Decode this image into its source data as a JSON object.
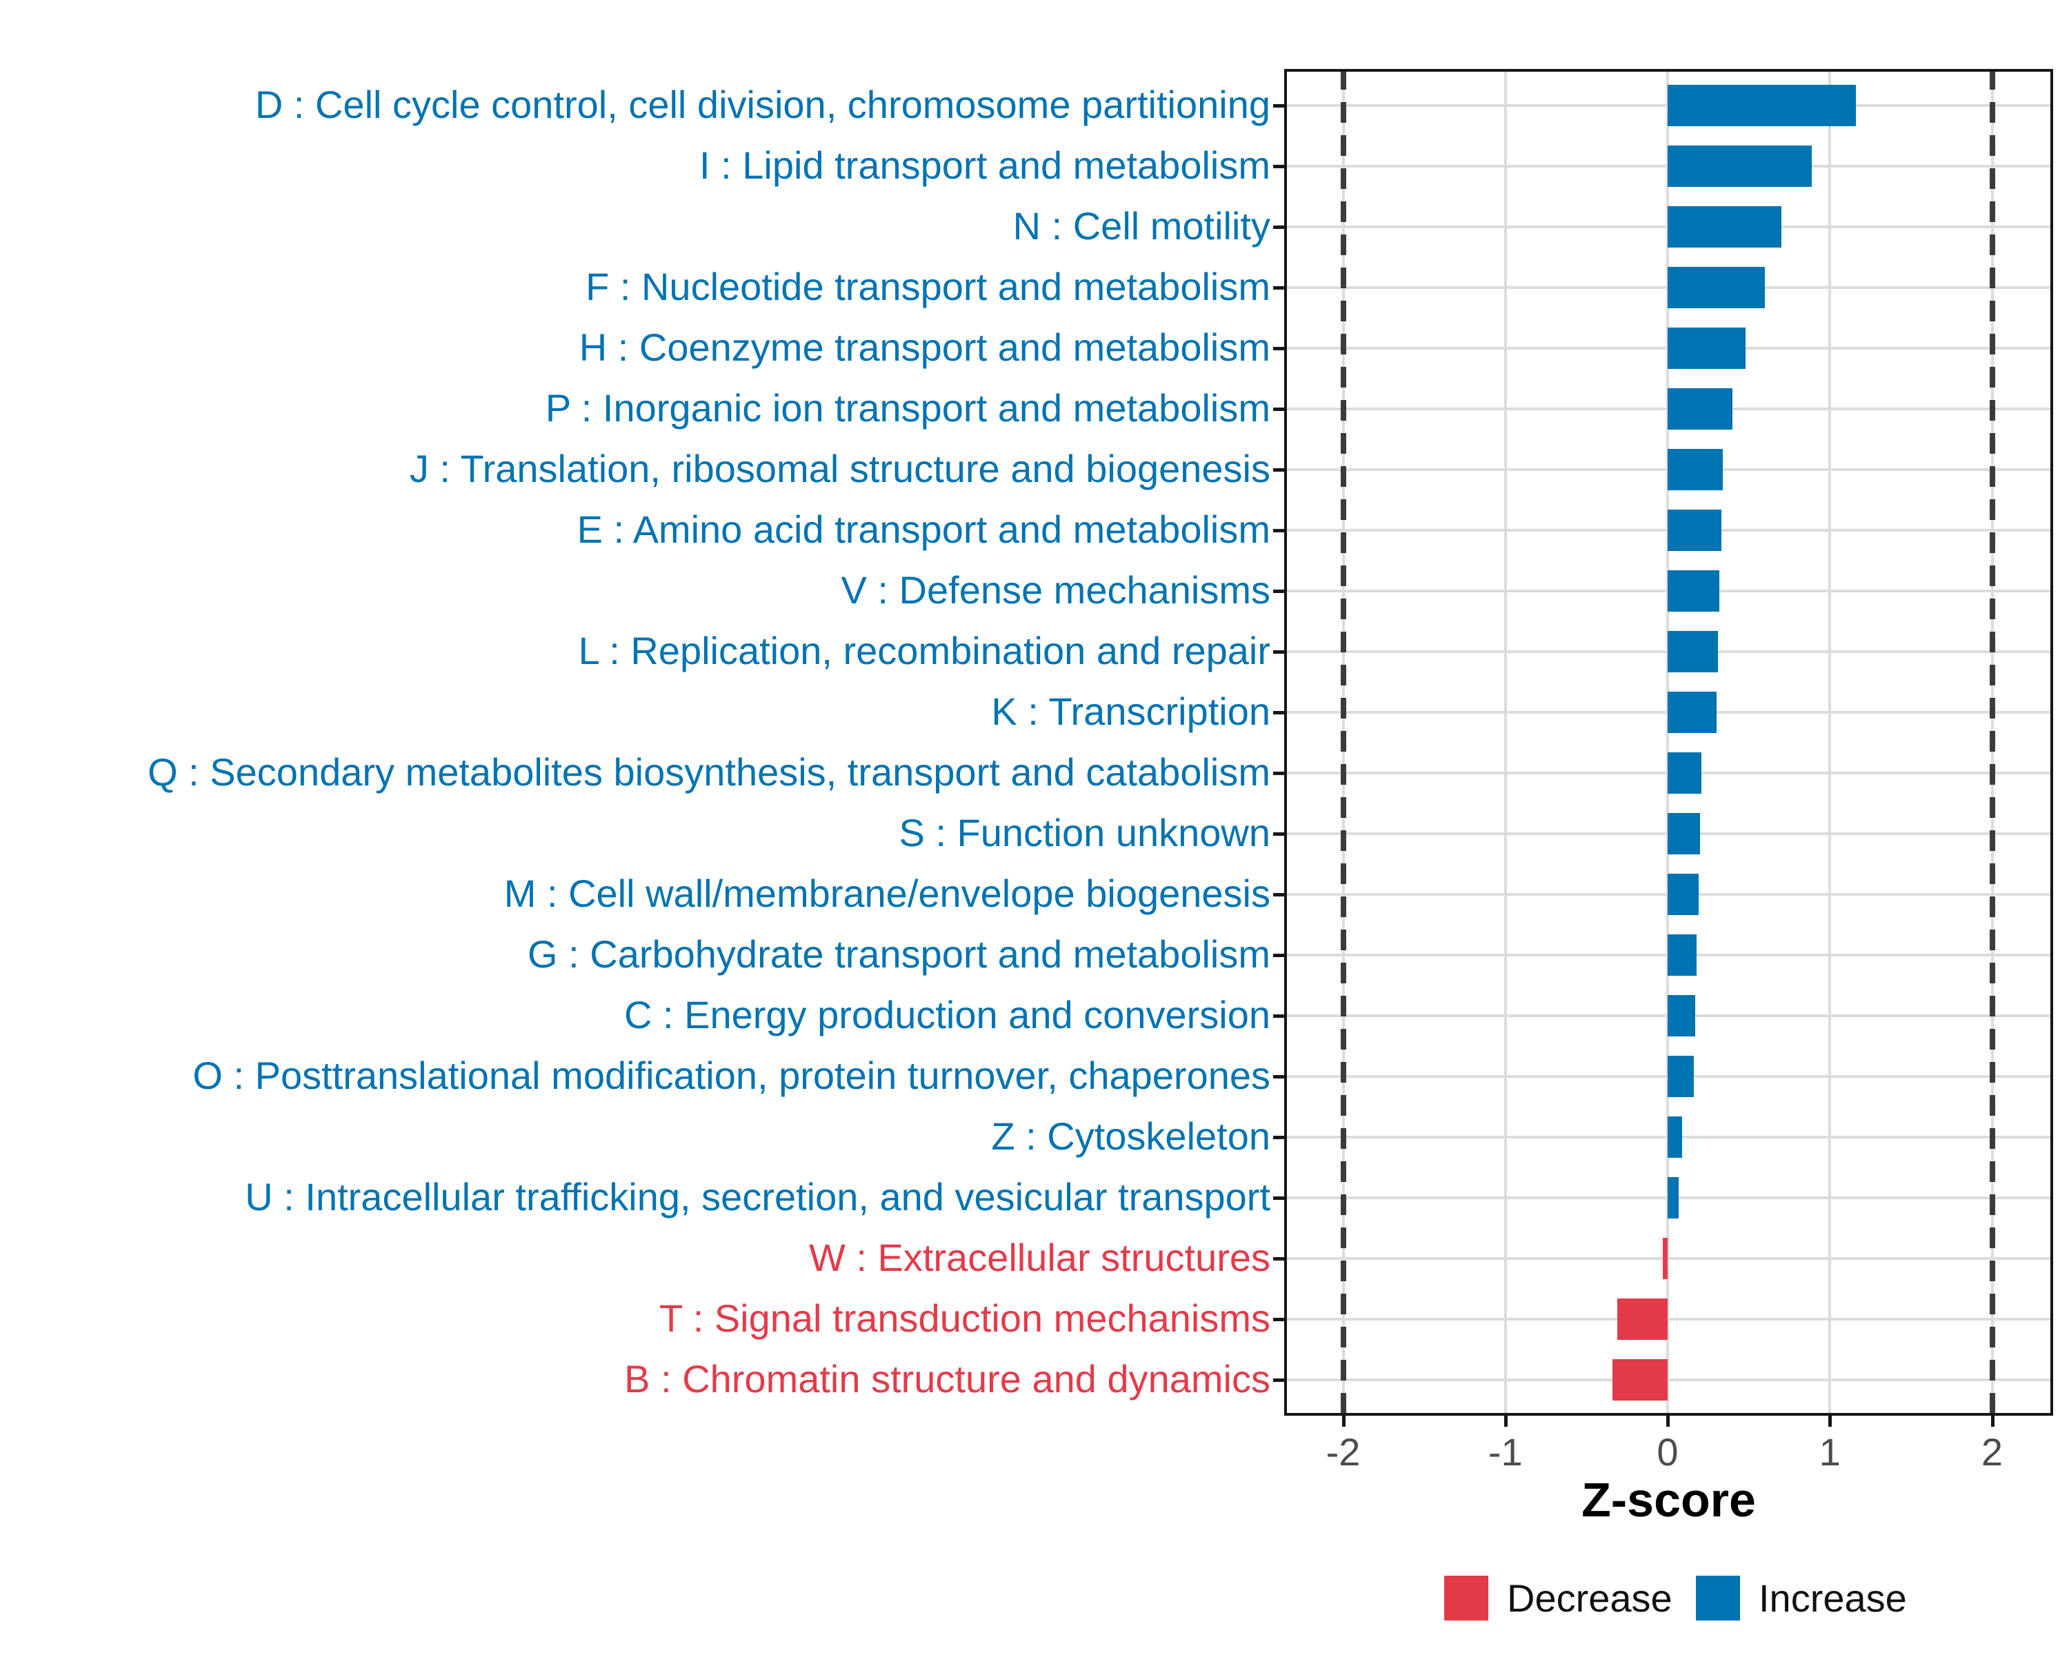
{
  "chart_data": {
    "type": "bar",
    "orientation": "horizontal",
    "title": "",
    "xlabel": "Z-score",
    "ylabel": "",
    "xlim": [
      -2.37,
      2.37
    ],
    "x_ticks": [
      -2,
      -1,
      0,
      1,
      2
    ],
    "reference_lines_x": [
      -2,
      2
    ],
    "grid": true,
    "legend_position": "bottom-right",
    "colors": {
      "Increase": "#0073B2",
      "Decrease": "#E33B4A"
    },
    "bars": [
      {
        "code": "D",
        "label": "D : Cell cycle control, cell division, chromosome partitioning",
        "value": 1.16,
        "group": "Increase"
      },
      {
        "code": "I",
        "label": "I : Lipid transport and metabolism",
        "value": 0.89,
        "group": "Increase"
      },
      {
        "code": "N",
        "label": "N : Cell motility",
        "value": 0.7,
        "group": "Increase"
      },
      {
        "code": "F",
        "label": "F : Nucleotide transport and metabolism",
        "value": 0.6,
        "group": "Increase"
      },
      {
        "code": "H",
        "label": "H : Coenzyme transport and metabolism",
        "value": 0.48,
        "group": "Increase"
      },
      {
        "code": "P",
        "label": "P : Inorganic ion transport and metabolism",
        "value": 0.4,
        "group": "Increase"
      },
      {
        "code": "J",
        "label": "J : Translation, ribosomal structure and biogenesis",
        "value": 0.34,
        "group": "Increase"
      },
      {
        "code": "E",
        "label": "E : Amino acid transport and metabolism",
        "value": 0.33,
        "group": "Increase"
      },
      {
        "code": "V",
        "label": "V : Defense mechanisms",
        "value": 0.32,
        "group": "Increase"
      },
      {
        "code": "L",
        "label": "L : Replication, recombination and repair",
        "value": 0.31,
        "group": "Increase"
      },
      {
        "code": "K",
        "label": "K : Transcription",
        "value": 0.3,
        "group": "Increase"
      },
      {
        "code": "Q",
        "label": "Q : Secondary metabolites biosynthesis, transport and catabolism",
        "value": 0.21,
        "group": "Increase"
      },
      {
        "code": "S",
        "label": "S : Function unknown",
        "value": 0.2,
        "group": "Increase"
      },
      {
        "code": "M",
        "label": "M : Cell wall/membrane/envelope biogenesis",
        "value": 0.19,
        "group": "Increase"
      },
      {
        "code": "G",
        "label": "G : Carbohydrate transport and metabolism",
        "value": 0.18,
        "group": "Increase"
      },
      {
        "code": "C",
        "label": "C : Energy production and conversion",
        "value": 0.17,
        "group": "Increase"
      },
      {
        "code": "O",
        "label": "O : Posttranslational modification, protein turnover, chaperones",
        "value": 0.16,
        "group": "Increase"
      },
      {
        "code": "Z",
        "label": "Z : Cytoskeleton",
        "value": 0.09,
        "group": "Increase"
      },
      {
        "code": "U",
        "label": "U : Intracellular trafficking, secretion, and vesicular transport",
        "value": 0.07,
        "group": "Increase"
      },
      {
        "code": "W",
        "label": "W : Extracellular structures",
        "value": -0.03,
        "group": "Decrease"
      },
      {
        "code": "T",
        "label": "T : Signal transduction mechanisms",
        "value": -0.31,
        "group": "Decrease"
      },
      {
        "code": "B",
        "label": "B : Chromatin structure and dynamics",
        "value": -0.34,
        "group": "Decrease"
      }
    ],
    "x_tick_labels": [
      "-2",
      "-1",
      "0",
      "1",
      "2"
    ]
  },
  "legend": {
    "entries": [
      {
        "label": "Decrease",
        "color": "#E33B4A"
      },
      {
        "label": "Increase",
        "color": "#0073B2"
      }
    ]
  }
}
